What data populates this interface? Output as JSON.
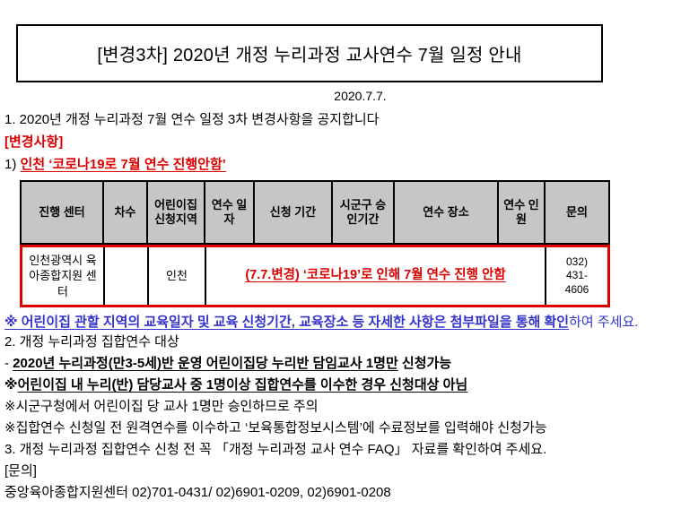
{
  "colors": {
    "accent_red": "#dd0000",
    "accent_blue": "#3333cc",
    "table_header_bg": "#c6c6c6"
  },
  "title": "[변경3차] 2020년 개정 누리과정 교사연수 7월 일정 안내",
  "date": "2020.7.7.",
  "intro": "1. 2020년 개정 누리과정 7월 연수 일정 3차 변경사항을 공지합니다",
  "change_heading": "[변경사항]",
  "change_item": {
    "prefix": "1) ",
    "text": "인천 ‘코로나19로 7월 연수 진행안함’"
  },
  "table": {
    "headers": [
      "진행 센터",
      "차수",
      "어린이집 신청지역",
      "연수 일자",
      "신청 기간",
      "시군구 승인기간",
      "연수 장소",
      "연수 인원",
      "문의"
    ],
    "row": {
      "center": "인천광역시 육아종합지원 센터",
      "round": "",
      "region": "인천",
      "notice": "(7.7.변경) ‘코로나19’로 인해 7월 연수 진행 안함",
      "contact": "032) 431-4606"
    }
  },
  "note_attachment": {
    "underlined": "※ 어린이집 관할 지역의 교육일자 및 교육 신청기간, 교육장소 등 자세한 사항은 첨부파일을 통해 확인",
    "tail": "하여 주세요."
  },
  "section2": "2. 개정 누리과정 집합연수 대상",
  "target_line": {
    "prefix": "- ",
    "underlined": "2020년 누리과정(만3-5세)반 운영 어린이집당 누리반 담임교사 1명만",
    "tail": " 신청가능"
  },
  "note1": {
    "marker": "※",
    "underlined": "어린이집 내 누리(반) 담당교사 중 1명이상 집합연수를 이수한 경우 신청대상 아님"
  },
  "note2": "※시군구청에서 어린이집 당 교사 1명만 승인하므로 주의",
  "note3": "※집합연수 신청일 전 원격연수를 이수하고 ‘보육통합정보시스템’에 수료정보를 입력해야 신청가능",
  "section3": "3. 개정 누리과정 집합연수 신청 전  꼭 「개정 누리과정 교사 연수 FAQ」 자료를 확인하여 주세요.",
  "inquiry_heading": "[문의]",
  "inquiry_contact": "중앙육아종합지원센터 02)701-0431/ 02)6901-0209, 02)6901-0208"
}
